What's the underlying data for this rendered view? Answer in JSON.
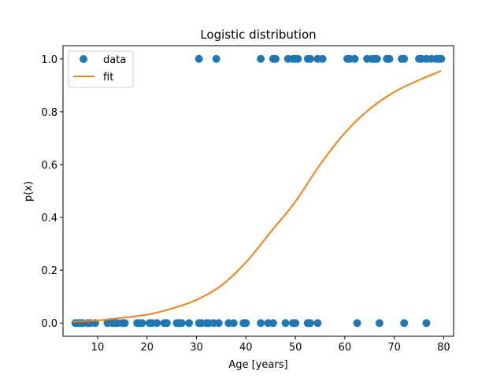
{
  "chart_data": {
    "type": "scatter",
    "title": "Logistic distribution",
    "xlabel": "Age [years]",
    "ylabel": "p(x)",
    "xlim": [
      3,
      82
    ],
    "ylim": [
      -0.05,
      1.05
    ],
    "xticks": [
      10,
      20,
      30,
      40,
      50,
      60,
      70,
      80
    ],
    "yticks": [
      0.0,
      0.2,
      0.4,
      0.6,
      0.8,
      1.0
    ],
    "xtick_labels": [
      "10",
      "20",
      "30",
      "40",
      "50",
      "60",
      "70",
      "80"
    ],
    "ytick_labels": [
      "0.0",
      "0.2",
      "0.4",
      "0.6",
      "0.8",
      "1.0"
    ],
    "grid": false,
    "legend_position": "top-left",
    "colors": {
      "data": "#1f77b4",
      "fit": "#ff7f0e"
    },
    "series": [
      {
        "name": "data",
        "kind": "scatter",
        "points": [
          [
            5.5,
            0
          ],
          [
            6,
            0
          ],
          [
            6.5,
            0
          ],
          [
            7,
            0
          ],
          [
            8,
            0
          ],
          [
            8.5,
            0
          ],
          [
            9.5,
            0
          ],
          [
            12,
            0
          ],
          [
            13,
            0
          ],
          [
            13.5,
            0
          ],
          [
            14,
            0
          ],
          [
            15,
            0
          ],
          [
            15.5,
            0
          ],
          [
            18,
            0
          ],
          [
            18.5,
            0
          ],
          [
            19,
            0
          ],
          [
            20.5,
            0
          ],
          [
            21,
            0
          ],
          [
            22,
            0
          ],
          [
            23.5,
            0
          ],
          [
            24,
            0
          ],
          [
            26,
            0
          ],
          [
            26.5,
            0
          ],
          [
            27,
            0
          ],
          [
            28.5,
            0
          ],
          [
            30.5,
            0
          ],
          [
            31,
            0
          ],
          [
            32,
            0
          ],
          [
            32.5,
            0
          ],
          [
            33.5,
            0
          ],
          [
            34.5,
            0
          ],
          [
            36.5,
            0
          ],
          [
            37.5,
            0
          ],
          [
            39.5,
            0
          ],
          [
            40,
            0
          ],
          [
            43,
            0
          ],
          [
            44.5,
            0
          ],
          [
            45.5,
            0
          ],
          [
            48,
            0
          ],
          [
            49.5,
            0
          ],
          [
            50,
            0
          ],
          [
            52.5,
            0
          ],
          [
            53,
            0
          ],
          [
            54.5,
            0
          ],
          [
            62.5,
            0
          ],
          [
            67,
            0
          ],
          [
            72,
            0
          ],
          [
            76.5,
            0
          ],
          [
            30.5,
            1
          ],
          [
            34,
            1
          ],
          [
            43,
            1
          ],
          [
            45.5,
            1
          ],
          [
            46,
            1
          ],
          [
            48.5,
            1
          ],
          [
            49.5,
            1
          ],
          [
            50,
            1
          ],
          [
            50.5,
            1
          ],
          [
            52.5,
            1
          ],
          [
            53,
            1
          ],
          [
            54.5,
            1
          ],
          [
            55.5,
            1
          ],
          [
            60.5,
            1
          ],
          [
            61,
            1
          ],
          [
            62,
            1
          ],
          [
            64.5,
            1
          ],
          [
            65.5,
            1
          ],
          [
            66,
            1
          ],
          [
            66.5,
            1
          ],
          [
            68.5,
            1
          ],
          [
            69,
            1
          ],
          [
            71.5,
            1
          ],
          [
            72,
            1
          ],
          [
            75,
            1
          ],
          [
            75.5,
            1
          ],
          [
            76.5,
            1
          ],
          [
            77.5,
            1
          ],
          [
            78.5,
            1
          ],
          [
            79,
            1
          ],
          [
            79.5,
            1
          ]
        ]
      },
      {
        "name": "fit",
        "kind": "line",
        "x": [
          5,
          10,
          15,
          20,
          25,
          30,
          35,
          40,
          45,
          50,
          55,
          60,
          65,
          70,
          75,
          79.5
        ],
        "y": [
          0.005,
          0.01,
          0.02,
          0.032,
          0.055,
          0.088,
          0.142,
          0.23,
          0.345,
          0.46,
          0.6,
          0.72,
          0.81,
          0.875,
          0.92,
          0.955
        ]
      }
    ]
  }
}
